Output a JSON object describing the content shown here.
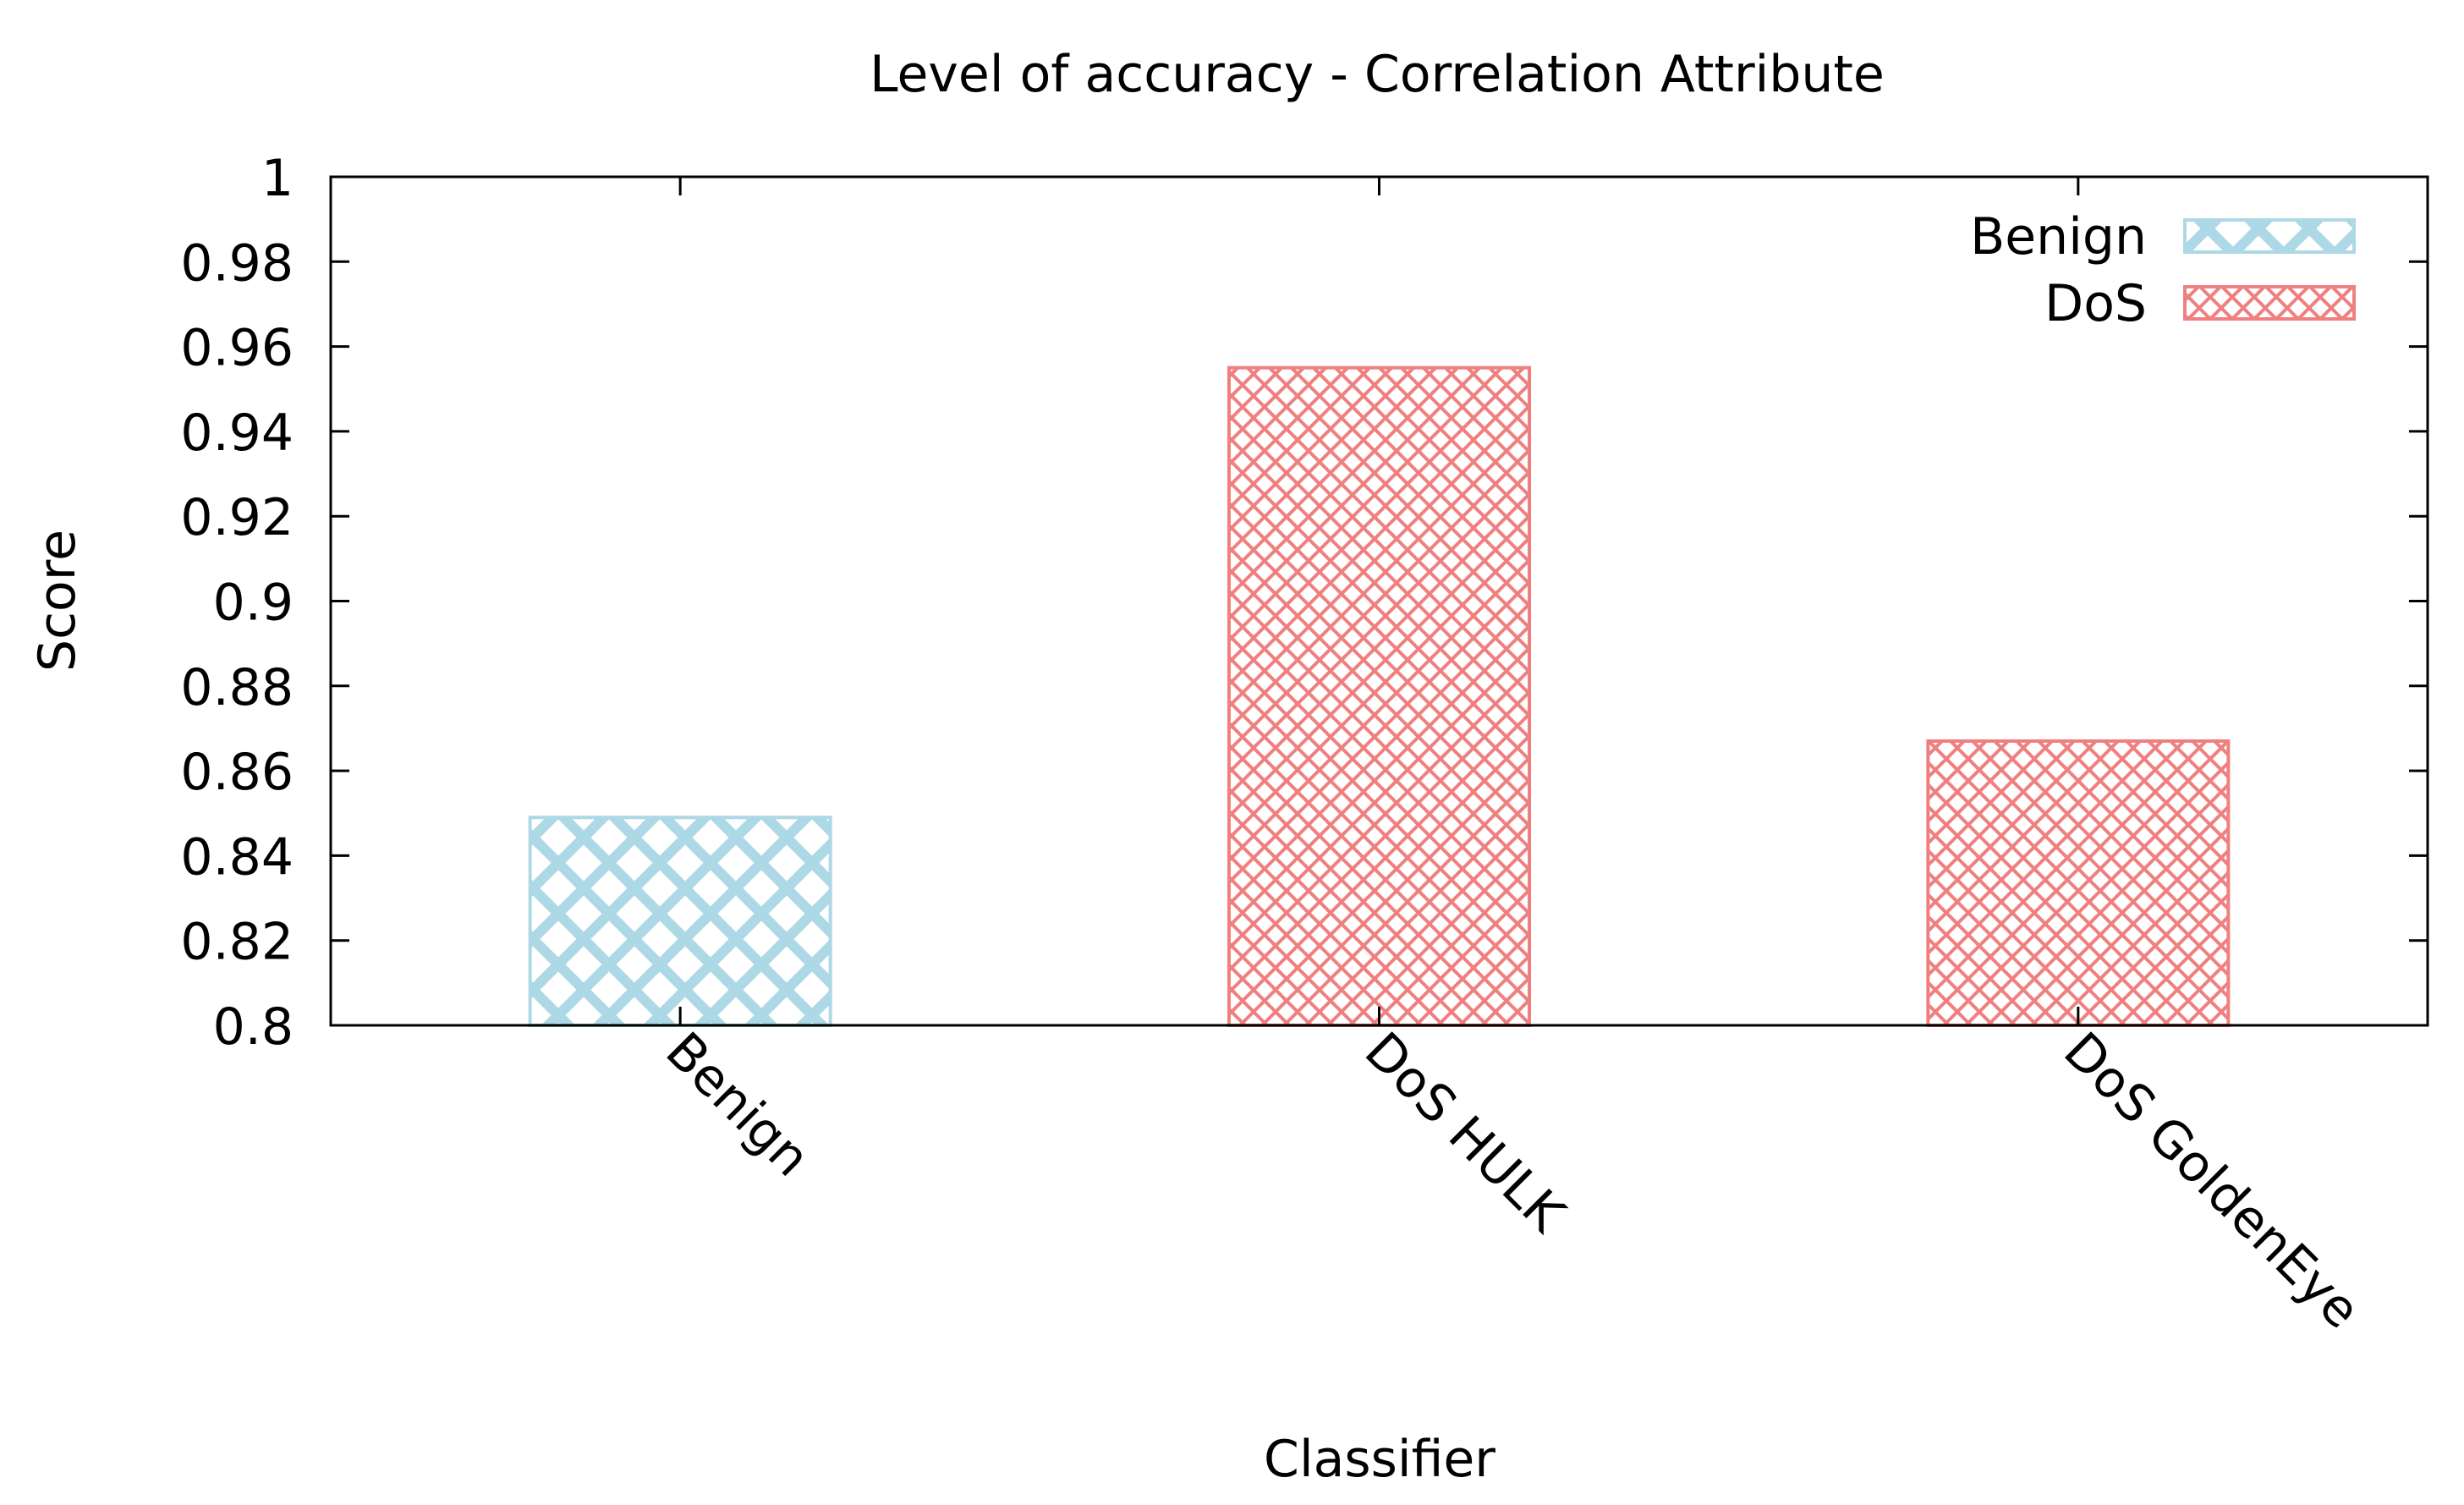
{
  "chart_data": {
    "type": "bar",
    "title": "Level of accuracy - Correlation Attribute",
    "xlabel": "Classifier",
    "ylabel": "Score",
    "ylim": [
      0.8,
      1.0
    ],
    "yticks": [
      0.8,
      0.82,
      0.84,
      0.86,
      0.88,
      0.9,
      0.92,
      0.94,
      0.96,
      0.98,
      1
    ],
    "ytick_labels": [
      "0.8",
      "0.82",
      "0.84",
      "0.86",
      "0.88",
      "0.9",
      "0.92",
      "0.94",
      "0.96",
      "0.98",
      "1"
    ],
    "categories": [
      "Benign",
      "DoS HULK",
      "DoS GoldenEye"
    ],
    "x_tick_rotation": "45-degree clockwise",
    "grid": false,
    "legend_position": "top-right",
    "series": [
      {
        "name": "Benign",
        "color": "#add8e6",
        "pattern": "crosshatch-wide",
        "values": [
          0.849,
          null,
          null
        ]
      },
      {
        "name": "DoS",
        "color": "#f08080",
        "pattern": "crosshatch-dense",
        "values": [
          null,
          0.955,
          0.867
        ]
      }
    ]
  }
}
